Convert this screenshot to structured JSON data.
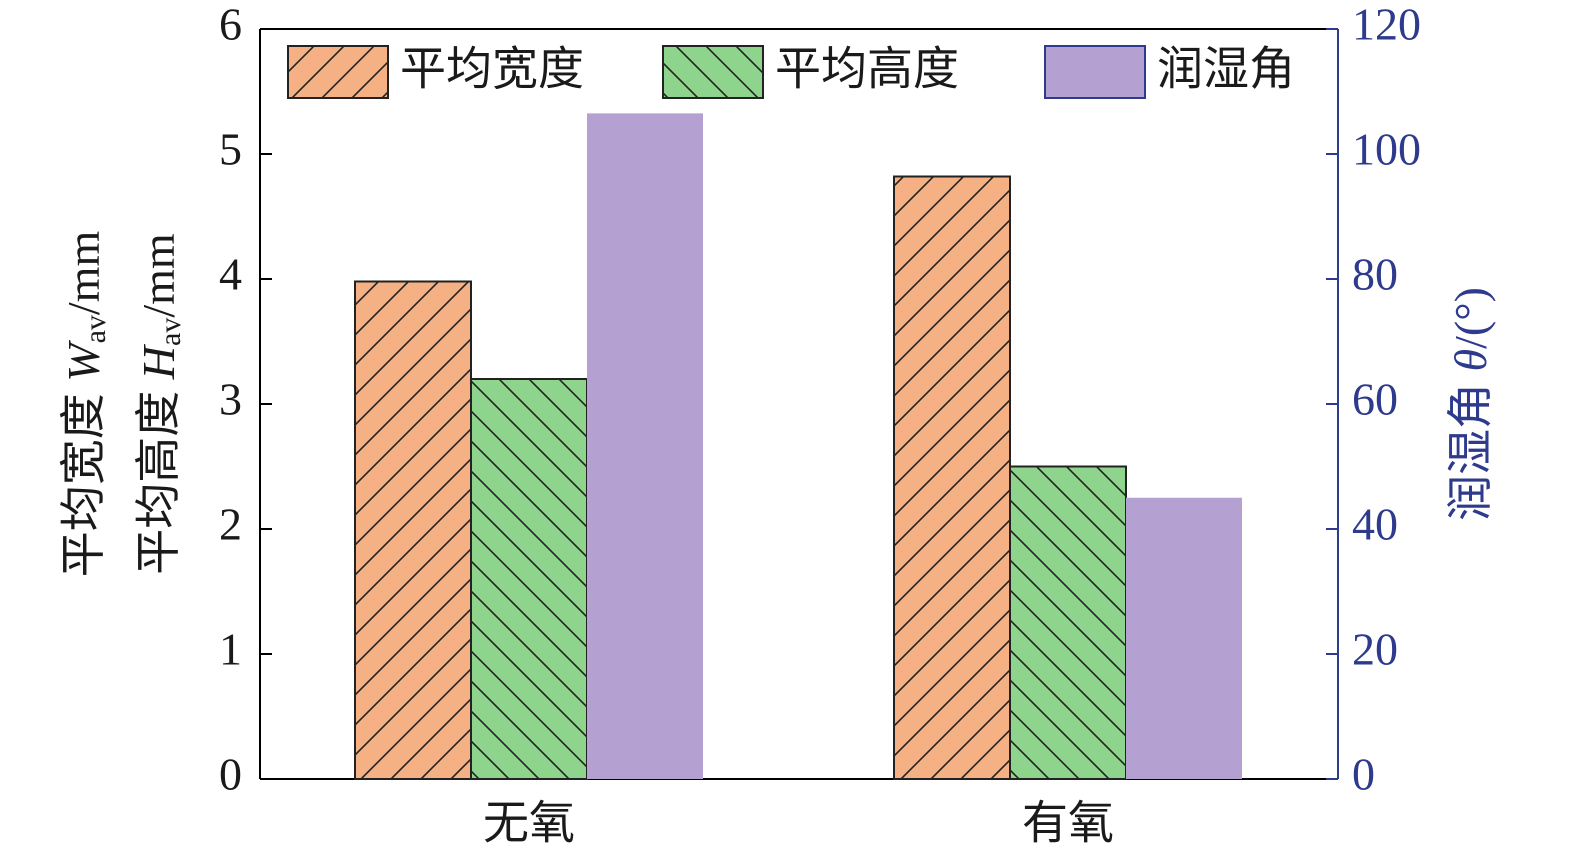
{
  "chart_data": {
    "type": "bar",
    "categories": [
      "无氧",
      "有氧"
    ],
    "series": [
      {
        "name": "平均宽度",
        "color": "#f5b183",
        "hatch": "/",
        "values": [
          3.98,
          4.82
        ]
      },
      {
        "name": "平均高度",
        "color": "#8fd48d",
        "hatch": "\\",
        "values": [
          3.2,
          2.5
        ]
      },
      {
        "name": "润湿角",
        "color": "#b4a1d2",
        "axis": "y2",
        "values": [
          106.5,
          45
        ]
      }
    ],
    "y_label": [
      {
        "text": "平均宽度 ",
        "symbol": "W",
        "subscript": "av",
        "unit": "/mm"
      },
      {
        "text": "平均高度 ",
        "symbol": "H",
        "subscript": "av",
        "unit": "/mm"
      }
    ],
    "y2_label": {
      "text": "润湿角 ",
      "symbol": "θ",
      "unit": "/(°)"
    },
    "y2_color": "#2e3a8c",
    "ylim": [
      0,
      6
    ],
    "yticks": [
      0,
      1,
      2,
      3,
      4,
      5,
      6
    ],
    "y2lim": [
      0,
      120
    ],
    "y2ticks": [
      0,
      20,
      40,
      60,
      80,
      100,
      120
    ],
    "legend": "top"
  }
}
